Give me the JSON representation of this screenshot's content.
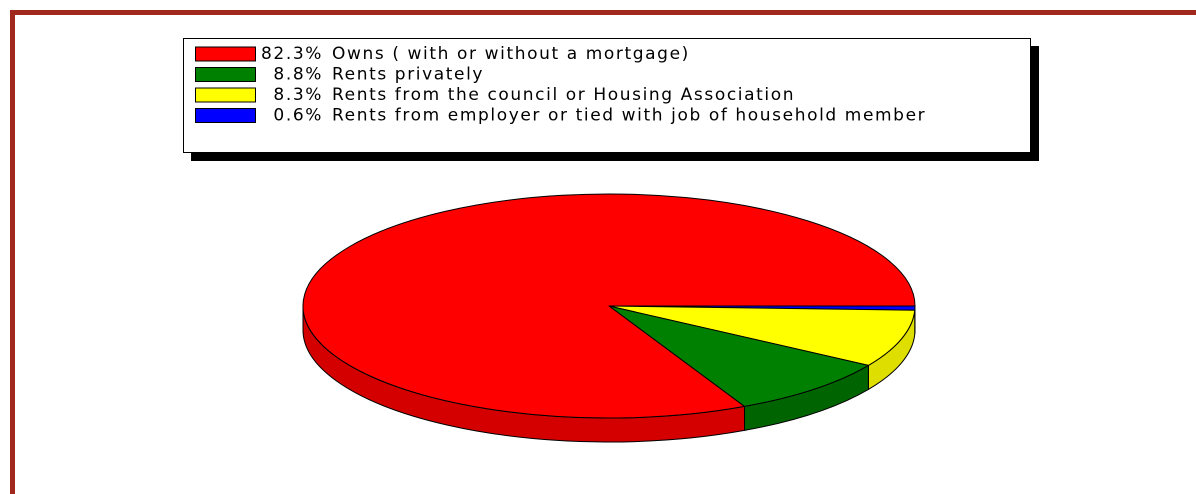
{
  "chart_data": {
    "type": "pie3d",
    "categories": [
      "Owns ( with or without a mortgage)",
      "Rents privately",
      "Rents from the council or Housing Association",
      "Rents from employer or tied with job of household member"
    ],
    "values": [
      82.3,
      8.8,
      8.3,
      0.6
    ],
    "value_labels": [
      "82.3%",
      "8.8%",
      "8.3%",
      "0.6%"
    ],
    "colors": [
      "#ff0000",
      "#008000",
      "#ffff00",
      "#0000ff"
    ],
    "side_colors": [
      "#d40000",
      "#006400",
      "#dede00",
      "#0000b0"
    ]
  }
}
